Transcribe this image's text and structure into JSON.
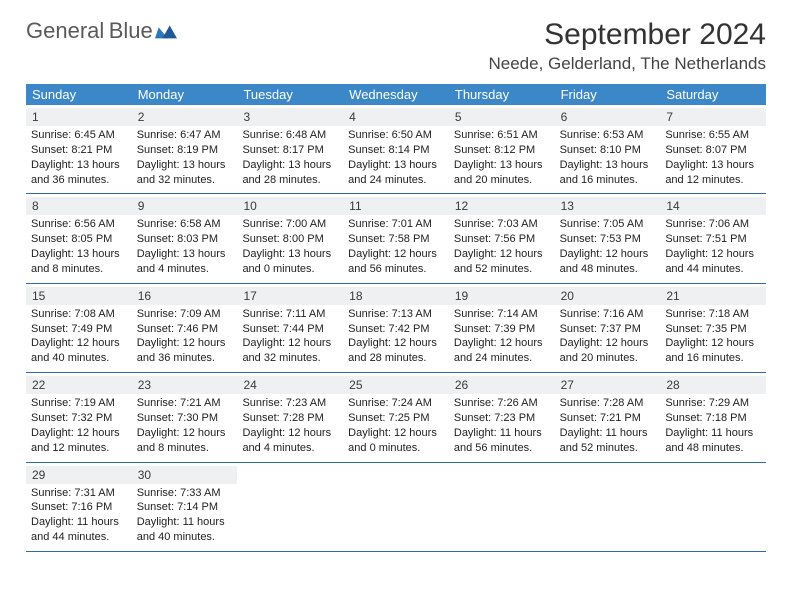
{
  "logo": {
    "text1": "General",
    "text2": "Blue"
  },
  "title": "September 2024",
  "location": "Neede, Gelderland, The Netherlands",
  "colors": {
    "header_bg": "#3b87c8",
    "header_text": "#ffffff",
    "daynum_bg": "#eef0f1",
    "week_border": "#2f6aa8",
    "text": "#222222",
    "title_text": "#333333"
  },
  "dow": [
    "Sunday",
    "Monday",
    "Tuesday",
    "Wednesday",
    "Thursday",
    "Friday",
    "Saturday"
  ],
  "weeks": [
    [
      {
        "n": "1",
        "sunrise": "6:45 AM",
        "sunset": "8:21 PM",
        "daylight": "13 hours and 36 minutes."
      },
      {
        "n": "2",
        "sunrise": "6:47 AM",
        "sunset": "8:19 PM",
        "daylight": "13 hours and 32 minutes."
      },
      {
        "n": "3",
        "sunrise": "6:48 AM",
        "sunset": "8:17 PM",
        "daylight": "13 hours and 28 minutes."
      },
      {
        "n": "4",
        "sunrise": "6:50 AM",
        "sunset": "8:14 PM",
        "daylight": "13 hours and 24 minutes."
      },
      {
        "n": "5",
        "sunrise": "6:51 AM",
        "sunset": "8:12 PM",
        "daylight": "13 hours and 20 minutes."
      },
      {
        "n": "6",
        "sunrise": "6:53 AM",
        "sunset": "8:10 PM",
        "daylight": "13 hours and 16 minutes."
      },
      {
        "n": "7",
        "sunrise": "6:55 AM",
        "sunset": "8:07 PM",
        "daylight": "13 hours and 12 minutes."
      }
    ],
    [
      {
        "n": "8",
        "sunrise": "6:56 AM",
        "sunset": "8:05 PM",
        "daylight": "13 hours and 8 minutes."
      },
      {
        "n": "9",
        "sunrise": "6:58 AM",
        "sunset": "8:03 PM",
        "daylight": "13 hours and 4 minutes."
      },
      {
        "n": "10",
        "sunrise": "7:00 AM",
        "sunset": "8:00 PM",
        "daylight": "13 hours and 0 minutes."
      },
      {
        "n": "11",
        "sunrise": "7:01 AM",
        "sunset": "7:58 PM",
        "daylight": "12 hours and 56 minutes."
      },
      {
        "n": "12",
        "sunrise": "7:03 AM",
        "sunset": "7:56 PM",
        "daylight": "12 hours and 52 minutes."
      },
      {
        "n": "13",
        "sunrise": "7:05 AM",
        "sunset": "7:53 PM",
        "daylight": "12 hours and 48 minutes."
      },
      {
        "n": "14",
        "sunrise": "7:06 AM",
        "sunset": "7:51 PM",
        "daylight": "12 hours and 44 minutes."
      }
    ],
    [
      {
        "n": "15",
        "sunrise": "7:08 AM",
        "sunset": "7:49 PM",
        "daylight": "12 hours and 40 minutes."
      },
      {
        "n": "16",
        "sunrise": "7:09 AM",
        "sunset": "7:46 PM",
        "daylight": "12 hours and 36 minutes."
      },
      {
        "n": "17",
        "sunrise": "7:11 AM",
        "sunset": "7:44 PM",
        "daylight": "12 hours and 32 minutes."
      },
      {
        "n": "18",
        "sunrise": "7:13 AM",
        "sunset": "7:42 PM",
        "daylight": "12 hours and 28 minutes."
      },
      {
        "n": "19",
        "sunrise": "7:14 AM",
        "sunset": "7:39 PM",
        "daylight": "12 hours and 24 minutes."
      },
      {
        "n": "20",
        "sunrise": "7:16 AM",
        "sunset": "7:37 PM",
        "daylight": "12 hours and 20 minutes."
      },
      {
        "n": "21",
        "sunrise": "7:18 AM",
        "sunset": "7:35 PM",
        "daylight": "12 hours and 16 minutes."
      }
    ],
    [
      {
        "n": "22",
        "sunrise": "7:19 AM",
        "sunset": "7:32 PM",
        "daylight": "12 hours and 12 minutes."
      },
      {
        "n": "23",
        "sunrise": "7:21 AM",
        "sunset": "7:30 PM",
        "daylight": "12 hours and 8 minutes."
      },
      {
        "n": "24",
        "sunrise": "7:23 AM",
        "sunset": "7:28 PM",
        "daylight": "12 hours and 4 minutes."
      },
      {
        "n": "25",
        "sunrise": "7:24 AM",
        "sunset": "7:25 PM",
        "daylight": "12 hours and 0 minutes."
      },
      {
        "n": "26",
        "sunrise": "7:26 AM",
        "sunset": "7:23 PM",
        "daylight": "11 hours and 56 minutes."
      },
      {
        "n": "27",
        "sunrise": "7:28 AM",
        "sunset": "7:21 PM",
        "daylight": "11 hours and 52 minutes."
      },
      {
        "n": "28",
        "sunrise": "7:29 AM",
        "sunset": "7:18 PM",
        "daylight": "11 hours and 48 minutes."
      }
    ],
    [
      {
        "n": "29",
        "sunrise": "7:31 AM",
        "sunset": "7:16 PM",
        "daylight": "11 hours and 44 minutes."
      },
      {
        "n": "30",
        "sunrise": "7:33 AM",
        "sunset": "7:14 PM",
        "daylight": "11 hours and 40 minutes."
      },
      null,
      null,
      null,
      null,
      null
    ]
  ],
  "labels": {
    "sunrise": "Sunrise:",
    "sunset": "Sunset:",
    "daylight": "Daylight:"
  }
}
